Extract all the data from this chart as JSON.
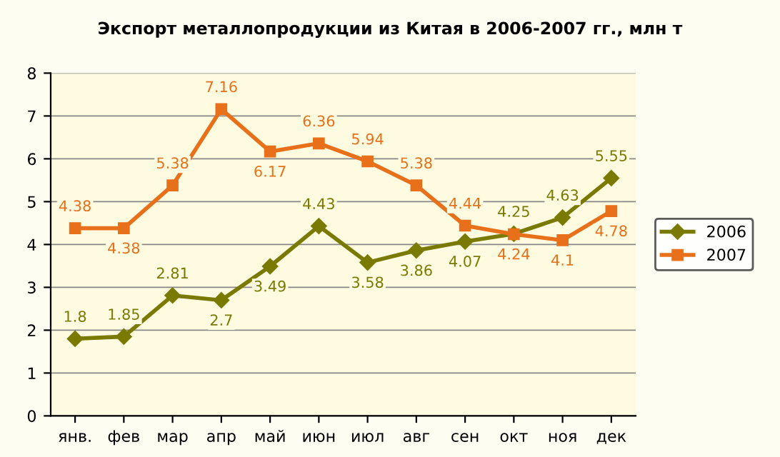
{
  "chart_data": {
    "type": "line",
    "title": "Экспорт металлопродукции из Китая в 2006-2007 гг., млн т",
    "categories": [
      "янв.",
      "фев",
      "мар",
      "апр",
      "май",
      "июн",
      "июл",
      "авг",
      "сен",
      "окт",
      "ноя",
      "дек"
    ],
    "series": [
      {
        "name": "2006",
        "color": "#7a7a00",
        "marker": "diamond",
        "values": [
          1.8,
          1.85,
          2.81,
          2.7,
          3.49,
          4.43,
          3.58,
          3.86,
          4.07,
          4.25,
          4.63,
          5.55
        ]
      },
      {
        "name": "2007",
        "color": "#e8701a",
        "marker": "square",
        "values": [
          4.38,
          4.38,
          5.38,
          7.16,
          6.17,
          6.36,
          5.94,
          5.38,
          4.44,
          4.24,
          4.1,
          4.78
        ]
      }
    ],
    "ylim": [
      0,
      8
    ],
    "yticks": [
      0,
      1,
      2,
      3,
      4,
      5,
      6,
      7,
      8
    ],
    "grid": "y",
    "legend": "right",
    "data_labels": true,
    "line_style": "solid"
  }
}
